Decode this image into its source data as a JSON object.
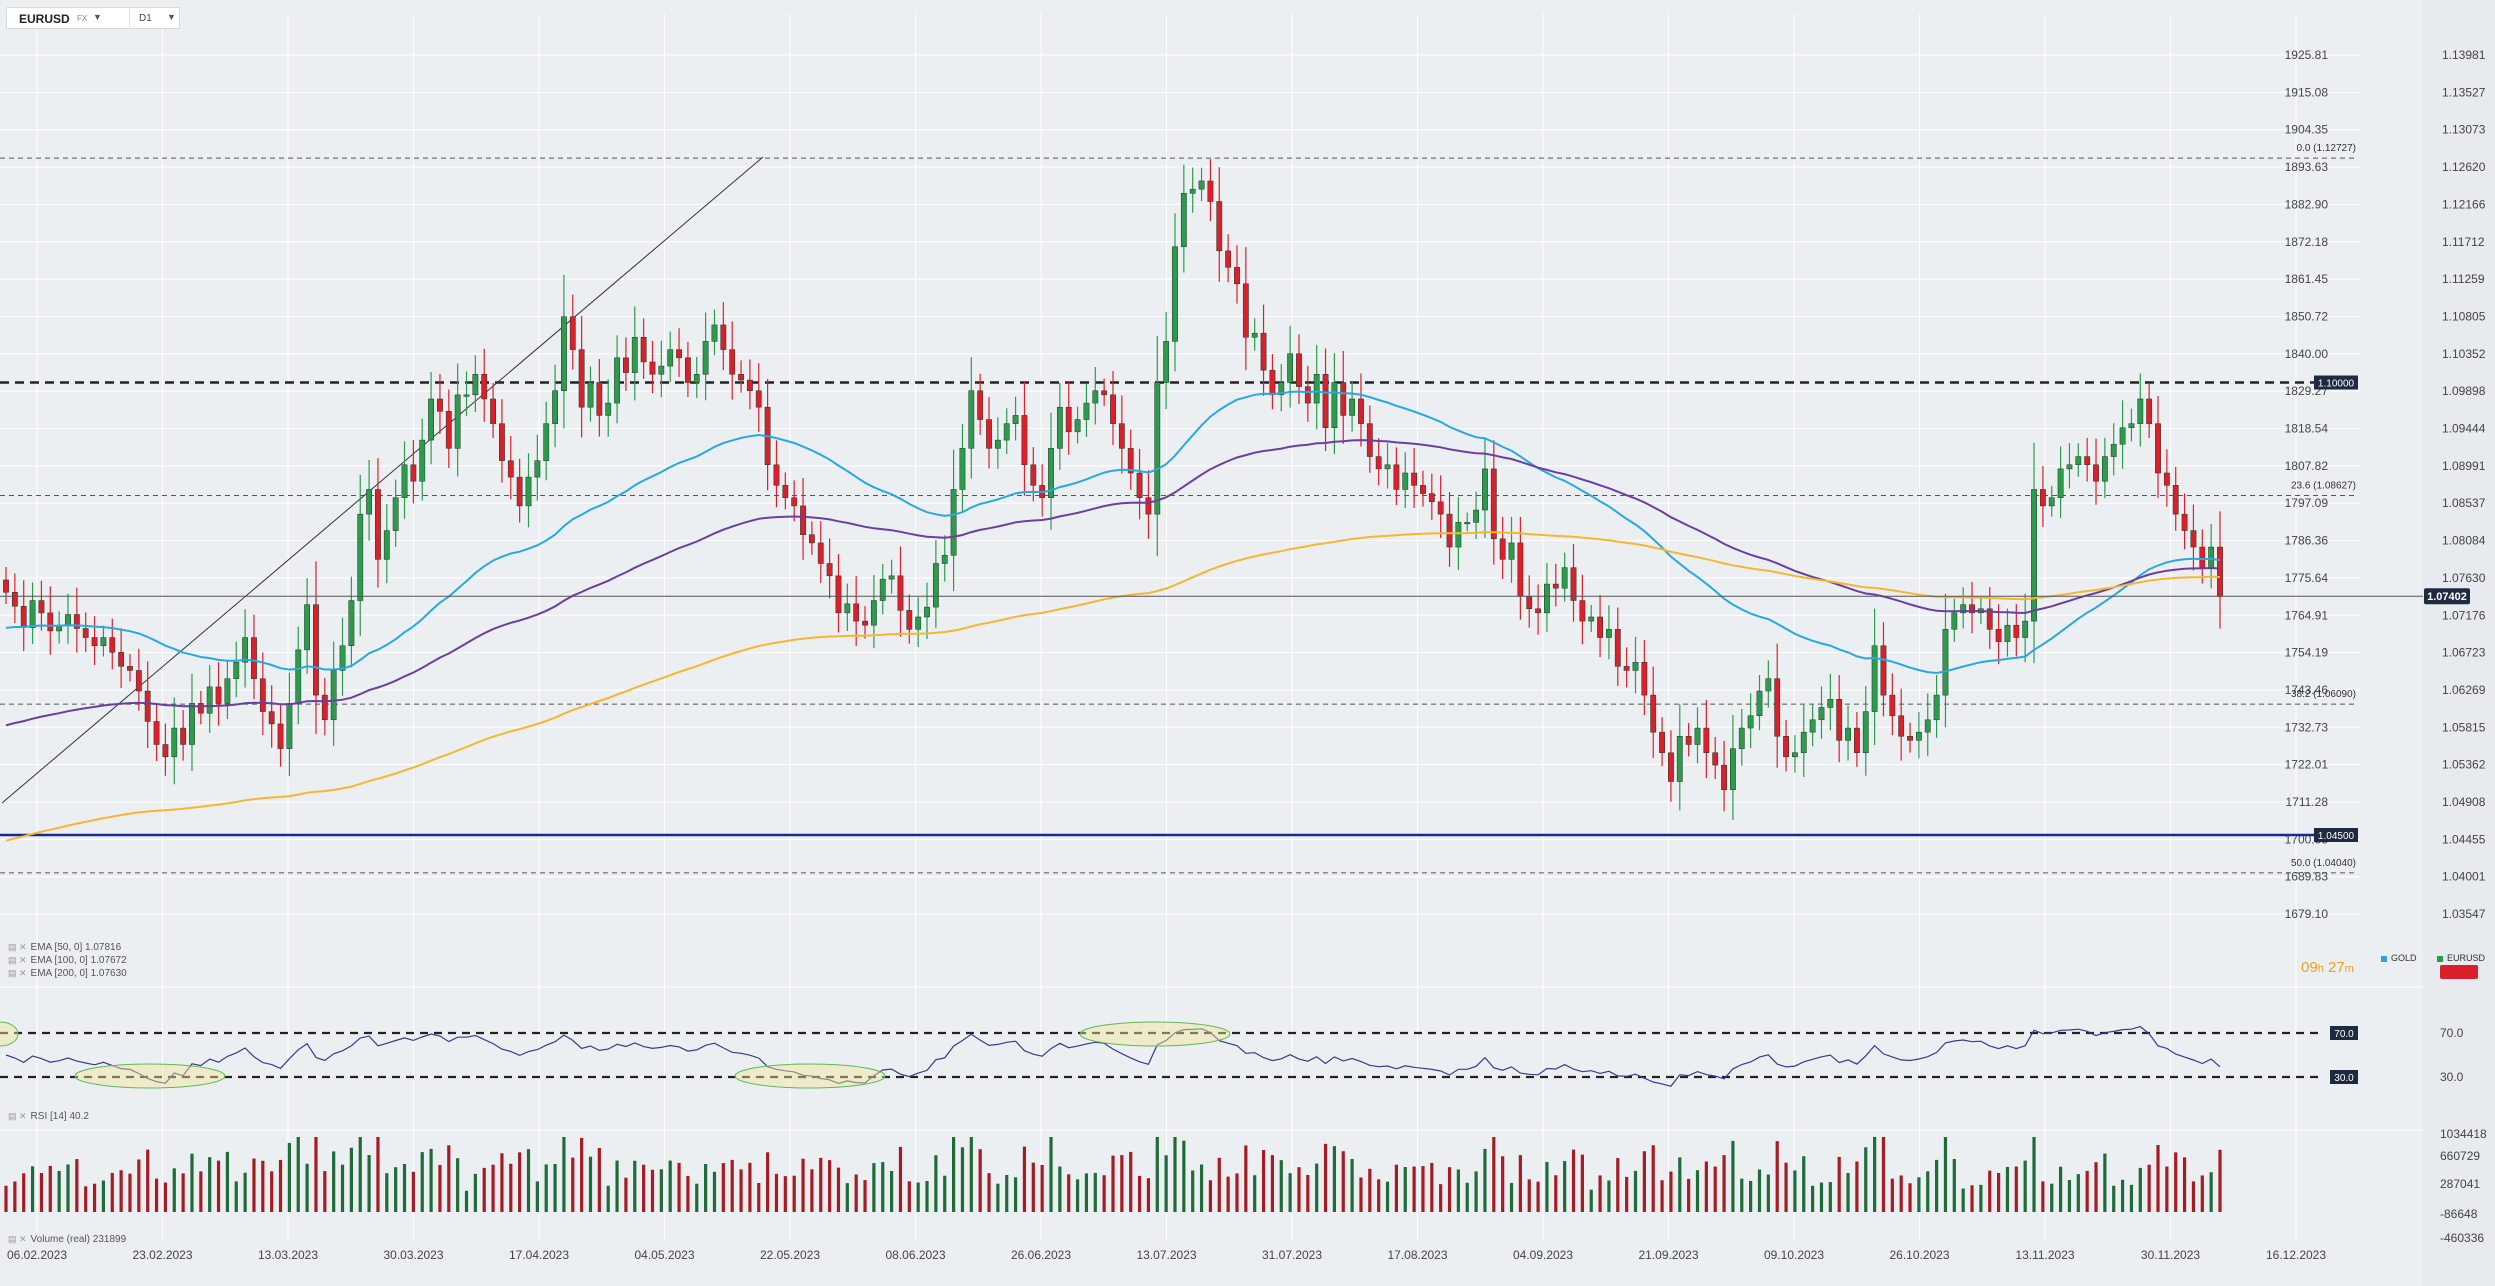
{
  "chart_data": {
    "type": "candlestick",
    "symbol": "EURUSD",
    "exchange": "FX",
    "timeframe": "D1",
    "price_axis_left_values": [
      "1925.81",
      "1915.08",
      "1904.35",
      "1893.63",
      "1882.90",
      "1872.18",
      "1861.45",
      "1850.72",
      "1840.00",
      "1829.27",
      "1818.54",
      "1807.82",
      "1797.09",
      "1786.36",
      "1775.64",
      "1764.91",
      "1754.19",
      "1743.46",
      "1732.73",
      "1722.01",
      "1711.28",
      "1700.55",
      "1689.83",
      "1679.10"
    ],
    "price_axis_right_values": [
      "1.13981",
      "1.13527",
      "1.13073",
      "1.12620",
      "1.12166",
      "1.11712",
      "1.11259",
      "1.10805",
      "1.10352",
      "1.09898",
      "1.09444",
      "1.08991",
      "1.08537",
      "1.08084",
      "1.07630",
      "1.07176",
      "1.06723",
      "1.06269",
      "1.05815",
      "1.05362",
      "1.04908",
      "1.04455",
      "1.04001",
      "1.03547"
    ],
    "ylim": [
      1.0332,
      1.1421
    ],
    "date_labels": [
      "06.02.2023",
      "23.02.2023",
      "13.03.2023",
      "30.03.2023",
      "17.04.2023",
      "04.05.2023",
      "22.05.2023",
      "08.06.2023",
      "26.06.2023",
      "13.07.2023",
      "31.07.2023",
      "17.08.2023",
      "04.09.2023",
      "21.09.2023",
      "09.10.2023",
      "26.10.2023",
      "13.11.2023",
      "30.11.2023",
      "16.12.2023"
    ],
    "close_series": [
      1.0745,
      1.0728,
      1.0702,
      1.0735,
      1.072,
      1.0698,
      1.0705,
      1.0718,
      1.0701,
      1.069,
      1.068,
      1.069,
      1.0672,
      1.0655,
      1.065,
      1.0625,
      1.0588,
      1.056,
      1.0545,
      1.058,
      1.056,
      1.061,
      1.0598,
      1.063,
      1.061,
      1.064,
      1.066,
      1.069,
      1.064,
      1.06,
      1.0585,
      1.0555,
      1.061,
      1.0675,
      1.073,
      1.062,
      1.059,
      1.065,
      1.068,
      1.0735,
      1.084,
      1.087,
      1.0785,
      1.082,
      1.086,
      1.09,
      1.088,
      1.093,
      1.098,
      1.0965,
      1.092,
      1.0985,
      1.0985,
      1.101,
      1.098,
      1.095,
      1.0905,
      1.0885,
      1.085,
      1.0885,
      1.0905,
      1.095,
      1.099,
      1.108,
      1.104,
      1.097,
      1.1,
      1.096,
      1.0975,
      1.103,
      1.1012,
      1.1055,
      1.1025,
      1.101,
      1.102,
      1.104,
      1.103,
      1.1,
      1.101,
      1.105,
      1.107,
      1.104,
      1.101,
      1.1003,
      1.099,
      1.097,
      1.09,
      1.0875,
      1.086,
      1.085,
      1.0815,
      1.0805,
      1.078,
      1.0765,
      1.072,
      1.0731,
      1.071,
      1.0705,
      1.0735,
      1.0761,
      1.0765,
      1.0723,
      1.07,
      1.0715,
      1.0727,
      1.078,
      1.079,
      1.087,
      1.092,
      1.099,
      1.0955,
      1.092,
      1.093,
      1.095,
      1.096,
      1.09,
      1.0875,
      1.086,
      1.092,
      1.097,
      1.094,
      1.0955,
      1.0975,
      1.099,
      1.0985,
      1.095,
      1.092,
      1.089,
      1.086,
      1.084,
      1.1,
      1.105,
      1.1165,
      1.123,
      1.1235,
      1.1245,
      1.122,
      1.116,
      1.114,
      1.112,
      1.1055,
      1.106,
      1.1015,
      1.0985,
      1.1,
      1.1035,
      1.0995,
      1.0975,
      1.101,
      1.0945,
      1.1,
      1.096,
      1.098,
      1.095,
      1.091,
      1.0895,
      1.09,
      1.087,
      1.089,
      1.0875,
      1.0865,
      1.0855,
      1.084,
      1.08,
      1.083,
      1.083,
      1.0845,
      1.0895,
      1.081,
      1.0785,
      1.0805,
      1.074,
      1.0725,
      1.072,
      1.0755,
      1.075,
      1.0775,
      1.0735,
      1.071,
      1.0715,
      1.069,
      1.07,
      1.0655,
      1.065,
      1.066,
      1.062,
      1.0575,
      1.055,
      1.0515,
      1.057,
      1.056,
      1.058,
      1.055,
      1.0535,
      1.0505,
      1.0555,
      1.058,
      1.0595,
      1.0625,
      1.064,
      1.057,
      1.0545,
      1.055,
      1.0575,
      1.059,
      1.0605,
      1.0615,
      1.0565,
      1.058,
      1.055,
      1.06,
      1.068,
      1.062,
      1.0595,
      1.057,
      1.0565,
      1.0575,
      1.059,
      1.062,
      1.07,
      1.072,
      1.073,
      1.072,
      1.0725,
      1.07,
      1.0685,
      1.0705,
      1.069,
      1.071,
      1.087,
      1.085,
      1.086,
      1.0895,
      1.09,
      1.091,
      1.09,
      1.088,
      1.091,
      1.0925,
      1.0945,
      1.095,
      1.098,
      1.095,
      1.089,
      1.0875,
      1.084,
      1.082,
      1.08,
      1.0775,
      1.08,
      1.074
    ],
    "current_price": "1.07402",
    "horizontal_levels": [
      {
        "label": "1.10000",
        "value": 1.1,
        "style": "thick-dashed"
      },
      {
        "label": "1.04500",
        "value": 1.045,
        "style": "solid-blue"
      }
    ],
    "fibonacci": [
      {
        "label": "0.0 (1.12727)",
        "value": 1.12727
      },
      {
        "label": "23.6 (1.08627)",
        "value": 1.08627
      },
      {
        "label": "38.2 (1.06090)",
        "value": 1.0609
      },
      {
        "label": "50.0 (1.04040)",
        "value": 1.0404
      }
    ],
    "indicators": [
      {
        "label": "EMA [50, 0]",
        "value": "1.07816",
        "color": "#29a8e0"
      },
      {
        "label": "EMA [100, 0]",
        "value": "1.07672",
        "color": "#6b3fa0"
      },
      {
        "label": "EMA [200, 0]",
        "value": "1.07630",
        "color": "#f5b731"
      }
    ],
    "rsi": {
      "label": "RSI [14]",
      "value": "40.2",
      "upper": "70.0",
      "lower": "30.0",
      "axis": [
        "70.0",
        "30.0"
      ],
      "color": "#3a3a8c"
    },
    "volume": {
      "label": "Volume (real)",
      "value": "231899",
      "axis": [
        "1034418",
        "660729",
        "287041",
        "-86648",
        "-460336"
      ]
    },
    "countdown": {
      "hours": "09",
      "h": "h",
      "minutes": "27",
      "m": "m"
    },
    "legend": [
      {
        "name": "GOLD",
        "color": "#29a8e0"
      },
      {
        "name": "EURUSD",
        "color": "#2e9a4e"
      }
    ],
    "up_color": "#2e9a4e",
    "down_color": "#d9202c"
  }
}
